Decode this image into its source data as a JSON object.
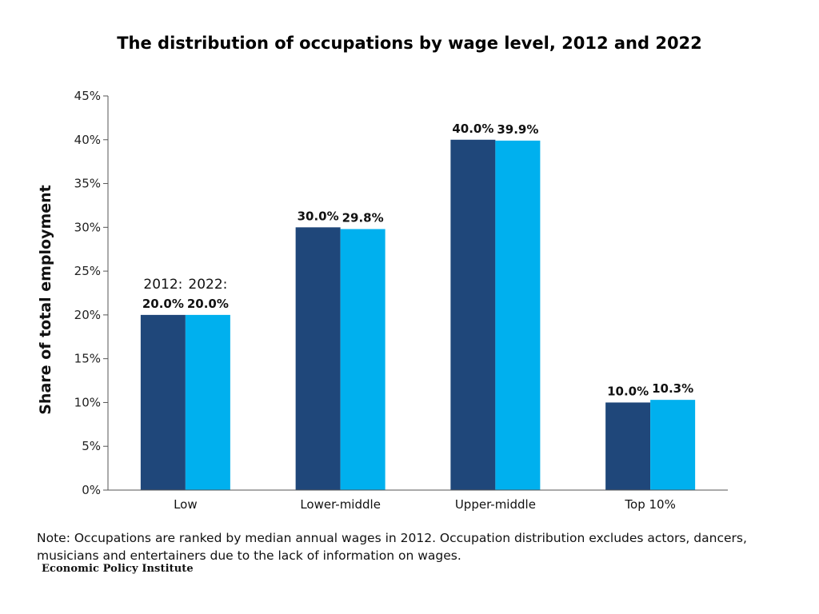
{
  "chart_data": {
    "type": "bar",
    "title": "The distribution of occupations by wage level, 2012 and 2022",
    "ylabel": "Share of total employment",
    "xlabel": "",
    "categories": [
      "Low",
      "Lower-middle",
      "Upper-middle",
      "Top 10%"
    ],
    "series": [
      {
        "key": "2012",
        "tag": "2012:",
        "color": "#1f477a",
        "values": [
          20.0,
          30.0,
          40.0,
          10.0
        ],
        "labels": [
          "20.0%",
          "30.0%",
          "40.0%",
          "10.0%"
        ]
      },
      {
        "key": "2022",
        "tag": "2022:",
        "color": "#00b0ee",
        "values": [
          20.0,
          29.8,
          39.9,
          10.3
        ],
        "labels": [
          "20.0%",
          "29.8%",
          "39.9%",
          "10.3%"
        ]
      }
    ],
    "ylim": [
      0,
      45
    ],
    "yticks": [
      0,
      5,
      10,
      15,
      20,
      25,
      30,
      35,
      40,
      45
    ],
    "ytick_labels": [
      "0%",
      "5%",
      "10%",
      "15%",
      "20%",
      "25%",
      "30%",
      "35%",
      "40%",
      "45%"
    ],
    "grid": false,
    "legend": "inline labels above first category"
  },
  "note": "Note: Occupations are ranked by median annual wages in 2012.  Occupation distribution excludes actors, dancers, musicians and entertainers due to the lack of information on wages.",
  "brand": "Economic Policy Institute"
}
